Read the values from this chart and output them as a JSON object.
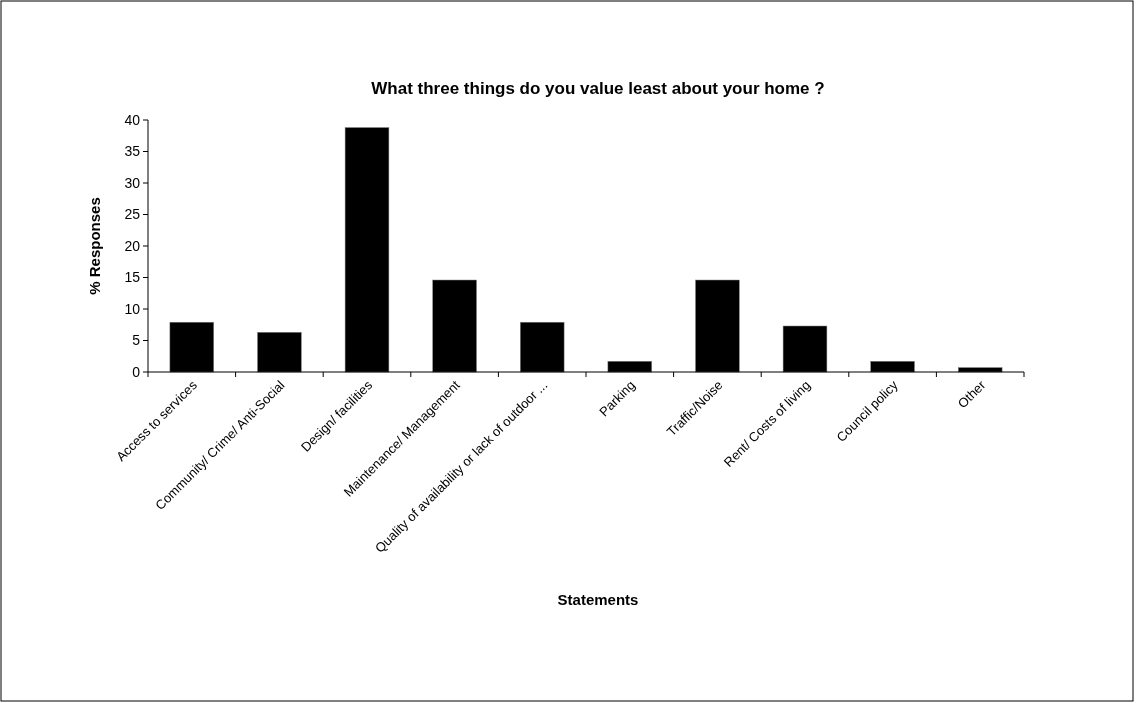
{
  "chart_data": {
    "type": "bar",
    "title": "What three things do you value least about your home ?",
    "xlabel": "Statements",
    "ylabel": "% Responses",
    "categories": [
      "Access to  services",
      "Community/ Crime/ Anti-Social",
      "Design/ facilities",
      "Maintenance/ Management",
      "Quality of availability or lack of outdoor ...",
      "Parking",
      "Traffic/Noise",
      "Rent/ Costs of living",
      "Council policy",
      "Other"
    ],
    "values": [
      7.9,
      6.3,
      38.8,
      14.6,
      7.9,
      1.7,
      14.6,
      7.3,
      1.7,
      0.7
    ],
    "color": "#000000",
    "ylim": [
      0,
      40
    ],
    "yticks": [
      0,
      5,
      10,
      15,
      20,
      25,
      30,
      35,
      40
    ],
    "grid": false
  }
}
